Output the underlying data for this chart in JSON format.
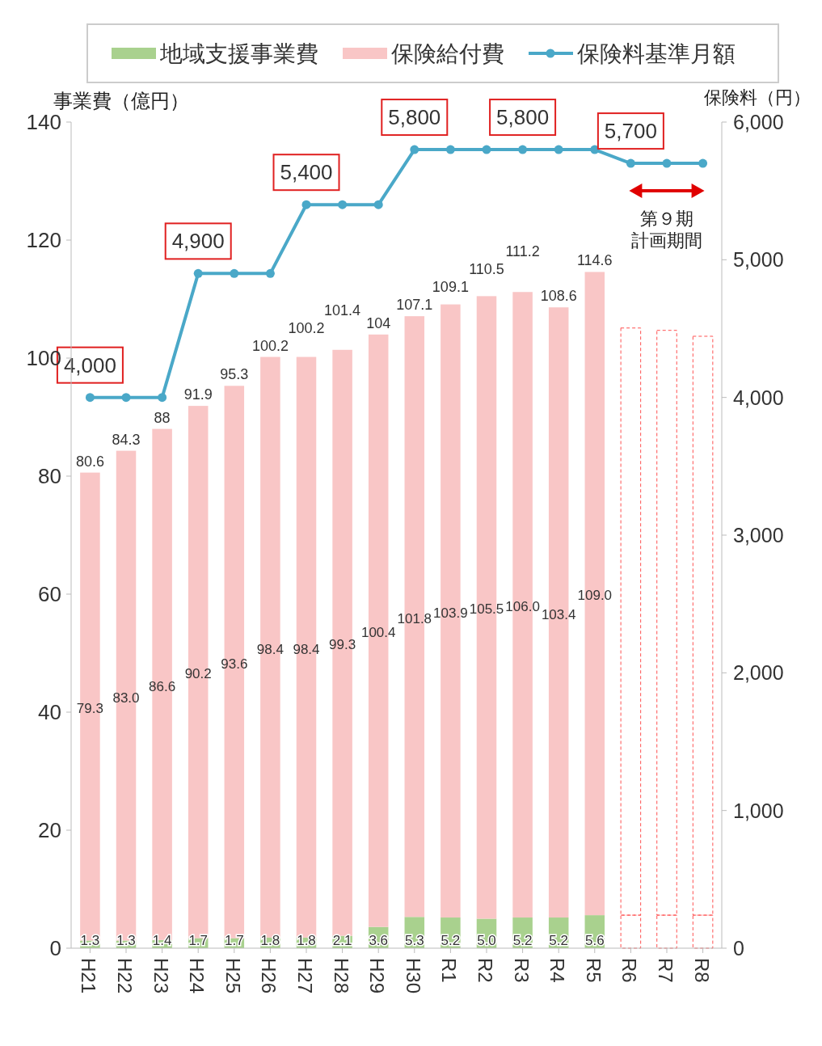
{
  "chart_data": {
    "type": "bar",
    "stacked": true,
    "categories": [
      "H21",
      "H22",
      "H23",
      "H24",
      "H25",
      "H26",
      "H27",
      "H28",
      "H29",
      "H30",
      "R1",
      "R2",
      "R3",
      "R4",
      "R5",
      "R6",
      "R7",
      "R8"
    ],
    "series": [
      {
        "name": "地域支援事業費",
        "color": "#a9d18e",
        "values": [
          1.3,
          1.3,
          1.4,
          1.7,
          1.7,
          1.8,
          1.8,
          2.1,
          3.6,
          5.3,
          5.2,
          5.0,
          5.2,
          5.2,
          5.6,
          null,
          null,
          null
        ],
        "value_labels": [
          "1.3",
          "1.3",
          "1.4",
          "1.7",
          "1.7",
          "1.8",
          "1.8",
          "2.1",
          "3.6",
          "5.3",
          "5.2",
          "5.0",
          "5.2",
          "5.2",
          "5.6",
          null,
          null,
          null
        ]
      },
      {
        "name": "保険給付費",
        "color": "#f9c6c6",
        "values": [
          79.3,
          83.0,
          86.6,
          90.2,
          93.6,
          98.4,
          98.4,
          99.3,
          100.4,
          101.8,
          103.9,
          105.5,
          106.0,
          103.4,
          109.0,
          null,
          null,
          null
        ],
        "value_labels": [
          "79.3",
          "83.0",
          "86.6",
          "90.2",
          "93.6",
          "98.4",
          "98.4",
          "99.3",
          "100.4",
          "101.8",
          "103.9",
          "105.5",
          "106.0",
          "103.4",
          "109.0",
          null,
          null,
          null
        ]
      },
      {
        "color": "#ff5050",
        "line_style": "dashed",
        "values": [
          null,
          null,
          null,
          null,
          null,
          null,
          null,
          null,
          null,
          null,
          null,
          null,
          null,
          null,
          null,
          5.6,
          5.6,
          5.6
        ]
      },
      {
        "color": "#ff5050",
        "line_style": "dashed",
        "values": [
          null,
          null,
          null,
          null,
          null,
          null,
          null,
          null,
          null,
          null,
          null,
          null,
          null,
          null,
          null,
          99.5,
          99.1,
          98.1
        ]
      },
      {
        "name": "保険料基準月額",
        "type": "line",
        "axis": "y2",
        "color": "#4aa8c8",
        "values": [
          4000,
          4000,
          4000,
          4900,
          4900,
          4900,
          5400,
          5400,
          5400,
          5800,
          5800,
          5800,
          5800,
          5800,
          5800,
          5700,
          5700,
          5700
        ],
        "value_labels": [
          "4,000",
          null,
          null,
          "4,900",
          null,
          null,
          "5,400",
          null,
          null,
          "5,800",
          null,
          null,
          "5,800",
          null,
          null,
          "5,700",
          null,
          null
        ]
      }
    ],
    "totals": [
      "80.6",
      "84.3",
      "88",
      "91.9",
      "95.3",
      "100.2",
      "100.2",
      "101.4",
      "104",
      "107.1",
      "109.1",
      "110.5",
      "111.2",
      "108.6",
      "114.6",
      null,
      null,
      null
    ],
    "ylabel": "事業費（億円）",
    "y2label": "保険料（円）",
    "ylim": [
      0,
      140
    ],
    "yticks": [
      0,
      20,
      40,
      60,
      80,
      100,
      120,
      140
    ],
    "y2lim": [
      0,
      6000
    ],
    "y2ticks": [
      0,
      {
        "value": 1000,
        "label": "1,000"
      },
      {
        "value": 2000,
        "label": "2,000"
      },
      {
        "value": 3000,
        "label": "3,000"
      },
      {
        "value": 4000,
        "label": "4,000"
      },
      {
        "value": 5000,
        "label": "5,000"
      },
      {
        "value": 6000,
        "label": "6,000"
      }
    ],
    "annotations": [
      "第９期",
      "計画期間"
    ],
    "legend": "top",
    "marker": "circle",
    "grid": false
  }
}
